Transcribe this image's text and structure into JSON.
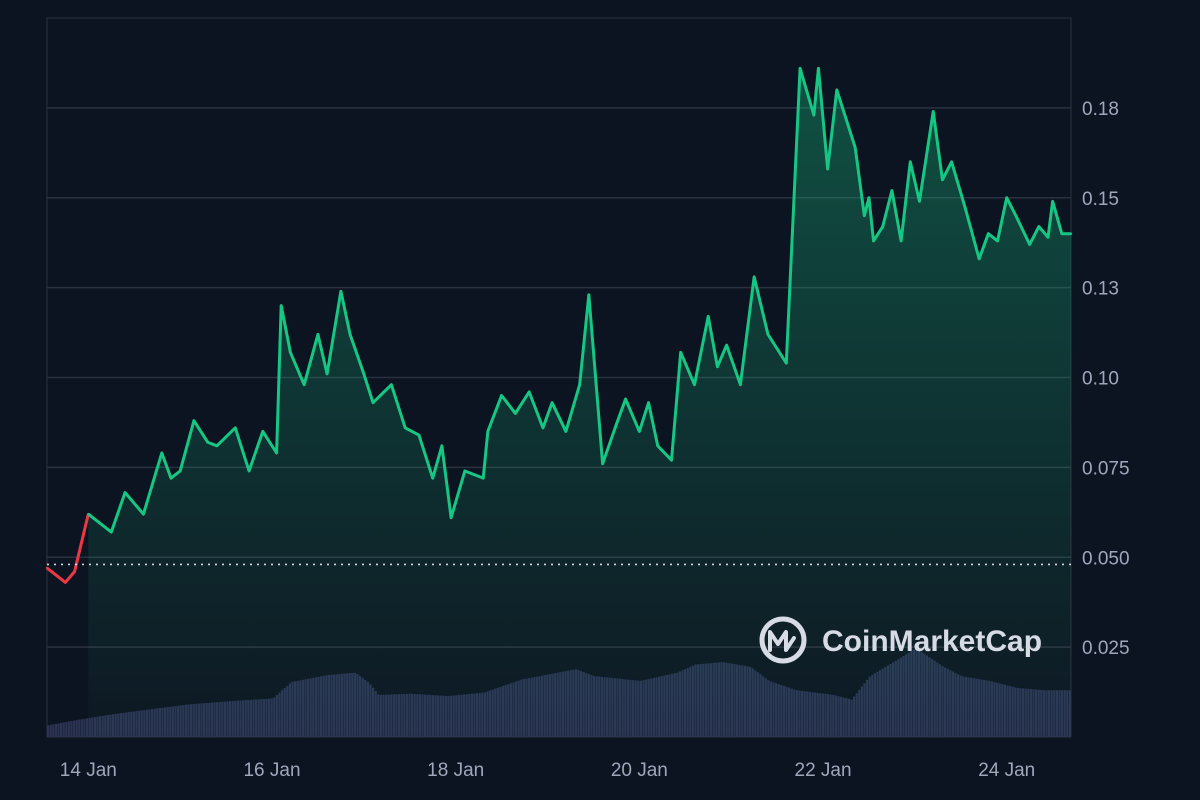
{
  "brand": {
    "name": "CoinMarketCap",
    "icon": "coinmarketcap-logo-icon"
  },
  "colors": {
    "background": "#0d1421",
    "gridline": "#2b3140",
    "axis_label": "#a1a7bb",
    "up_line": "#16c784",
    "down_line": "#ea3943",
    "volume": "#2c3454",
    "baseline_dotted": "#cfd3dc"
  },
  "chart_data": {
    "type": "area",
    "x_tick_labels": [
      "14 Jan",
      "16 Jan",
      "18 Jan",
      "20 Jan",
      "22 Jan",
      "24 Jan"
    ],
    "y_tick_labels": [
      "0.025",
      "0.050",
      "0.075",
      "0.10",
      "0.13",
      "0.15",
      "0.18"
    ],
    "y_tick_values": [
      0.025,
      0.05,
      0.075,
      0.1,
      0.125,
      0.15,
      0.175
    ],
    "ylim": [
      0,
      0.2
    ],
    "y_axis_position": "right",
    "grid": true,
    "baseline_price": 0.048,
    "price_series": {
      "x_days": [
        13.55,
        13.65,
        13.75,
        13.85,
        14.0,
        14.25,
        14.4,
        14.6,
        14.8,
        14.9,
        15.0,
        15.15,
        15.3,
        15.4,
        15.6,
        15.75,
        15.9,
        16.05,
        16.1,
        16.2,
        16.35,
        16.5,
        16.6,
        16.75,
        16.85,
        17.0,
        17.1,
        17.3,
        17.45,
        17.6,
        17.75,
        17.85,
        17.95,
        18.1,
        18.3,
        18.35,
        18.5,
        18.65,
        18.8,
        18.95,
        19.05,
        19.2,
        19.35,
        19.45,
        19.6,
        19.75,
        19.85,
        20.0,
        20.1,
        20.2,
        20.35,
        20.45,
        20.6,
        20.75,
        20.85,
        20.95,
        21.1,
        21.25,
        21.4,
        21.6,
        21.75,
        21.9,
        21.95,
        22.05,
        22.15,
        22.35,
        22.45,
        22.5,
        22.55,
        22.65,
        22.75,
        22.85,
        22.95,
        23.05,
        23.2,
        23.3,
        23.4,
        23.55,
        23.7,
        23.8,
        23.9,
        24.0,
        24.1,
        24.25,
        24.35,
        24.45,
        24.5,
        24.6,
        24.7
      ],
      "values": [
        0.047,
        0.045,
        0.043,
        0.046,
        0.062,
        0.057,
        0.068,
        0.062,
        0.079,
        0.072,
        0.074,
        0.088,
        0.082,
        0.081,
        0.086,
        0.074,
        0.085,
        0.079,
        0.12,
        0.107,
        0.098,
        0.112,
        0.101,
        0.124,
        0.112,
        0.101,
        0.093,
        0.098,
        0.086,
        0.084,
        0.072,
        0.081,
        0.061,
        0.074,
        0.072,
        0.085,
        0.095,
        0.09,
        0.096,
        0.086,
        0.093,
        0.085,
        0.098,
        0.123,
        0.076,
        0.087,
        0.094,
        0.085,
        0.093,
        0.081,
        0.077,
        0.107,
        0.098,
        0.117,
        0.103,
        0.109,
        0.098,
        0.128,
        0.112,
        0.104,
        0.186,
        0.173,
        0.186,
        0.158,
        0.18,
        0.164,
        0.145,
        0.15,
        0.138,
        0.142,
        0.152,
        0.138,
        0.16,
        0.149,
        0.174,
        0.155,
        0.16,
        0.147,
        0.133,
        0.14,
        0.138,
        0.15,
        0.145,
        0.137,
        0.142,
        0.139,
        0.149,
        0.14,
        0.14
      ]
    },
    "volume_series": {
      "x_days": [
        13.55,
        13.9,
        14.3,
        14.7,
        15.1,
        15.6,
        16.0,
        16.1,
        16.2,
        16.6,
        16.9,
        17.05,
        17.15,
        17.5,
        17.9,
        18.3,
        18.7,
        19.1,
        19.3,
        19.5,
        20.0,
        20.4,
        20.6,
        20.9,
        21.2,
        21.4,
        21.7,
        21.9,
        22.1,
        22.3,
        22.5,
        22.8,
        23.0,
        23.3,
        23.5,
        23.8,
        24.1,
        24.4,
        24.7
      ],
      "values": [
        0.1,
        0.15,
        0.2,
        0.24,
        0.28,
        0.31,
        0.33,
        0.4,
        0.47,
        0.53,
        0.55,
        0.46,
        0.36,
        0.37,
        0.35,
        0.38,
        0.49,
        0.55,
        0.58,
        0.52,
        0.48,
        0.55,
        0.62,
        0.64,
        0.6,
        0.48,
        0.4,
        0.38,
        0.36,
        0.32,
        0.52,
        0.66,
        0.76,
        0.6,
        0.52,
        0.48,
        0.42,
        0.4,
        0.4
      ]
    }
  }
}
